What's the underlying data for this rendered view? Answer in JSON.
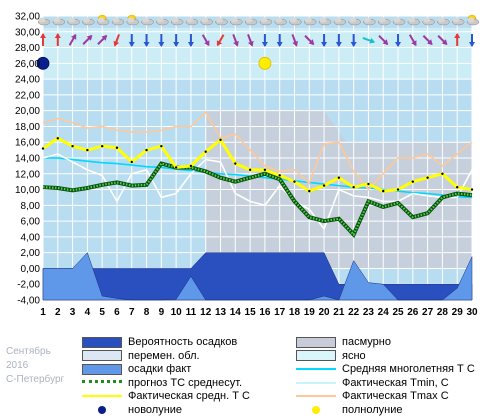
{
  "chart_data": {
    "type": "line",
    "ylim": [
      -4,
      32
    ],
    "yticks": [
      "32,00",
      "30,00",
      "28,00",
      "26,00",
      "24,00",
      "22,00",
      "20,00",
      "18,00",
      "16,00",
      "14,00",
      "12,00",
      "10,00",
      "8,00",
      "6,00",
      "4,00",
      "2,00",
      "0,00",
      "-2,00",
      "-4,00"
    ],
    "x": [
      1,
      2,
      3,
      4,
      5,
      6,
      7,
      8,
      9,
      10,
      11,
      12,
      13,
      14,
      15,
      16,
      17,
      18,
      19,
      20,
      21,
      22,
      23,
      24,
      25,
      26,
      27,
      28,
      29,
      30
    ],
    "xticks": [
      "1",
      "2",
      "3",
      "4",
      "5",
      "6",
      "7",
      "8",
      "9",
      "10",
      "11",
      "12",
      "13",
      "14",
      "15",
      "16",
      "17",
      "18",
      "19",
      "20",
      "21",
      "22",
      "23",
      "24",
      "25",
      "26",
      "27",
      "28",
      "29",
      "30"
    ],
    "grid": true,
    "series": [
      {
        "name": "Вероятность осадков",
        "type": "area",
        "color": "#2a4fbf",
        "values": [
          0,
          0,
          0,
          0,
          0,
          0,
          0,
          0,
          0,
          0,
          0,
          2,
          2,
          2,
          2,
          2,
          2,
          2,
          2,
          2,
          -2,
          -2,
          -2,
          -2,
          -2,
          -2,
          -2,
          -2,
          -2,
          -2
        ]
      },
      {
        "name": "осадки факт",
        "type": "area",
        "color": "#5f98e8",
        "values": [
          0,
          0,
          0,
          2,
          -3.5,
          -3.8,
          -4,
          -4,
          -4,
          -3.9,
          -1,
          -4,
          -4,
          -4,
          -4,
          -4,
          -4,
          -4,
          -4,
          -3.5,
          -4,
          1,
          -1.8,
          -2,
          -4,
          -4,
          -4,
          -4,
          -2.5,
          1.5
        ]
      },
      {
        "name": "Средняя многолетняя Т С",
        "type": "line",
        "color": "#00d8ff",
        "values": [
          14.0,
          14.0,
          13.8,
          13.6,
          13.4,
          13.3,
          13.1,
          12.9,
          12.8,
          12.6,
          12.4,
          12.2,
          12.0,
          11.9,
          11.7,
          11.5,
          11.3,
          11.1,
          10.9,
          10.7,
          10.5,
          10.3,
          10.2,
          10.0,
          9.8,
          9.6,
          9.5,
          9.3,
          9.1,
          9.0
        ]
      },
      {
        "name": "Фактическая Tmin, С",
        "type": "line",
        "color": "#ffffff",
        "values": [
          14.0,
          14.5,
          13.5,
          12.5,
          11.8,
          8.5,
          12.0,
          12.5,
          9.0,
          9.5,
          12.0,
          13.8,
          13.5,
          9.5,
          8.5,
          8.0,
          10.5,
          8.5,
          7.5,
          5.0,
          10.0,
          9.2,
          9.0,
          8.5,
          8.5,
          9.5,
          9.2,
          9.0,
          9.0,
          12.5
        ]
      },
      {
        "name": "Фактическая Tmax C",
        "type": "line",
        "color": "#ffc89a",
        "values": [
          18.5,
          19.0,
          18.5,
          17.8,
          18.0,
          17.5,
          17.3,
          17.3,
          17.5,
          18.0,
          18.0,
          19.8,
          16.5,
          17.0,
          15.0,
          13.0,
          12.3,
          12.5,
          10.8,
          15.8,
          16.0,
          12.3,
          10.0,
          12.0,
          14.0,
          14.0,
          14.5,
          13.0,
          14.5,
          16.0
        ]
      },
      {
        "name": "прогноз ТС среднесут.",
        "type": "line",
        "color": "#1d8f1d",
        "values": [
          10.3,
          10.2,
          9.9,
          10.2,
          10.6,
          10.9,
          10.5,
          10.6,
          13.3,
          12.8,
          12.8,
          12.3,
          11.5,
          11.0,
          11.5,
          12.0,
          11.3,
          8.5,
          6.5,
          6.0,
          6.3,
          4.3,
          8.5,
          7.8,
          8.3,
          6.5,
          7.0,
          9.0,
          9.5,
          9.3
        ]
      },
      {
        "name": "Фактическая средн. Т С",
        "type": "line",
        "color": "#ffff00",
        "values": [
          15.2,
          16.5,
          15.5,
          15.0,
          15.5,
          15.3,
          13.5,
          15.0,
          15.5,
          12.8,
          13.0,
          14.8,
          16.3,
          13.3,
          12.5,
          12.5,
          11.8,
          11.0,
          9.8,
          10.5,
          11.5,
          10.3,
          10.7,
          9.8,
          10.0,
          11.0,
          11.5,
          12.0,
          10.3,
          10.0
        ]
      }
    ],
    "markers": [
      {
        "name": "новолуние",
        "x": 1,
        "y": 26,
        "color": "#0a1e8c"
      },
      {
        "name": "полнолуние",
        "x": 16,
        "y": 26,
        "color": "#ffee00"
      }
    ],
    "legend_position": "bottom"
  },
  "legend": {
    "items": [
      {
        "label": "Вероятность осадков",
        "swatch": "area",
        "color": "#2a4fbf"
      },
      {
        "label": "пасмурно",
        "swatch": "area",
        "color": "#c8ccd8"
      },
      {
        "label": "перемен. обл.",
        "swatch": "area",
        "color": "#dde6f4"
      },
      {
        "label": "ясно",
        "swatch": "area",
        "color": "#d9f6fa"
      },
      {
        "label": "осадки факт",
        "swatch": "area",
        "color": "#5f98e8"
      },
      {
        "label": "Средняя многолетняя Т С",
        "swatch": "line",
        "color": "#00d8ff"
      },
      {
        "label": "прогноз ТС среднесут.",
        "swatch": "dotted",
        "color": "#1d8f1d"
      },
      {
        "label": "Фактическая Tmin, С",
        "swatch": "line",
        "color": "#c7f5fb"
      },
      {
        "label": "Фактическая средн. Т С",
        "swatch": "line",
        "color": "#ffff00"
      },
      {
        "label": "Фактическая Tmax C",
        "swatch": "line",
        "color": "#ffc89a"
      },
      {
        "label": "новолуние",
        "swatch": "dot",
        "color": "#0a1e8c"
      },
      {
        "label": "полнолуние",
        "swatch": "dot",
        "color": "#ffee00"
      }
    ]
  },
  "meta": {
    "month": "Сентябрь",
    "year": "2016",
    "city": "С-Петербург"
  },
  "weather_icons": {
    "day_icons": [
      "cloud",
      "cloud",
      "cloud",
      "cloud",
      "sun-cloud",
      "cloud",
      "sun-cloud",
      "cloud",
      "cloud",
      "cloud",
      "cloud",
      "cloud",
      "cloud",
      "cloud",
      "cloud",
      "cloud",
      "cloud",
      "cloud",
      "cloud",
      "cloud",
      "cloud",
      "cloud",
      "cloud",
      "cloud",
      "cloud",
      "cloud",
      "cloud",
      "cloud",
      "cloud",
      "sun-cloud"
    ],
    "wind_colors": [
      "#e23a3a",
      "#e23a3a",
      "#9b3aa0",
      "#9b3aa0",
      "#9b3aa0",
      "#e23a3a",
      "#2a56d6",
      "#2a56d6",
      "#2a56d6",
      "#2a56d6",
      "#2a56d6",
      "#9b3aa0",
      "#e23a3a",
      "#9b3aa0",
      "#9b3aa0",
      "#2a56d6",
      "#2a56d6",
      "#9b3aa0",
      "#9b3aa0",
      "#2a56d6",
      "#2a56d6",
      "#2a56d6",
      "#18c0d0",
      "#9b3aa0",
      "#2a56d6",
      "#9b3aa0",
      "#9b3aa0",
      "#9b3aa0",
      "#e23a3a",
      "#2a56d6"
    ]
  }
}
